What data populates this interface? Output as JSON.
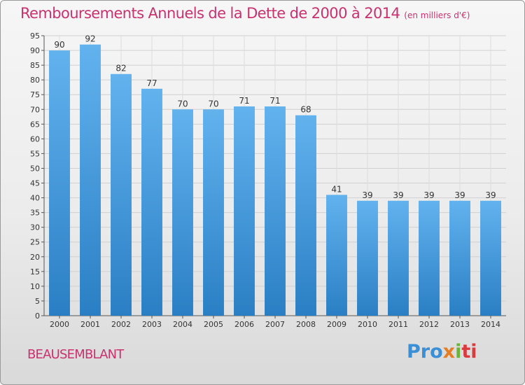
{
  "header": {
    "title": "Remboursements Annuels de la Dette de 2000 à 2014",
    "subtitle": "(en milliers d'€)"
  },
  "footer": {
    "city": "BEAUSEMBLANT",
    "logo_parts": [
      "Pro",
      "x",
      "i",
      "ti"
    ]
  },
  "colors": {
    "title": "#c8326e",
    "bar_top": "#62b2ee",
    "bar_bottom": "#2a7fc4"
  },
  "chart_data": {
    "type": "bar",
    "title": "Remboursements Annuels de la Dette de 2000 à 2014",
    "xlabel": "",
    "ylabel": "",
    "ylim": [
      0,
      95
    ],
    "yticks": [
      0,
      5,
      10,
      15,
      20,
      25,
      30,
      35,
      40,
      45,
      50,
      55,
      60,
      65,
      70,
      75,
      80,
      85,
      90,
      95
    ],
    "grid": true,
    "categories": [
      "2000",
      "2001",
      "2002",
      "2003",
      "2004",
      "2005",
      "2006",
      "2007",
      "2008",
      "2009",
      "2010",
      "2011",
      "2012",
      "2013",
      "2014"
    ],
    "values": [
      90,
      92,
      82,
      77,
      70,
      70,
      71,
      71,
      68,
      41,
      39,
      39,
      39,
      39,
      39
    ]
  }
}
